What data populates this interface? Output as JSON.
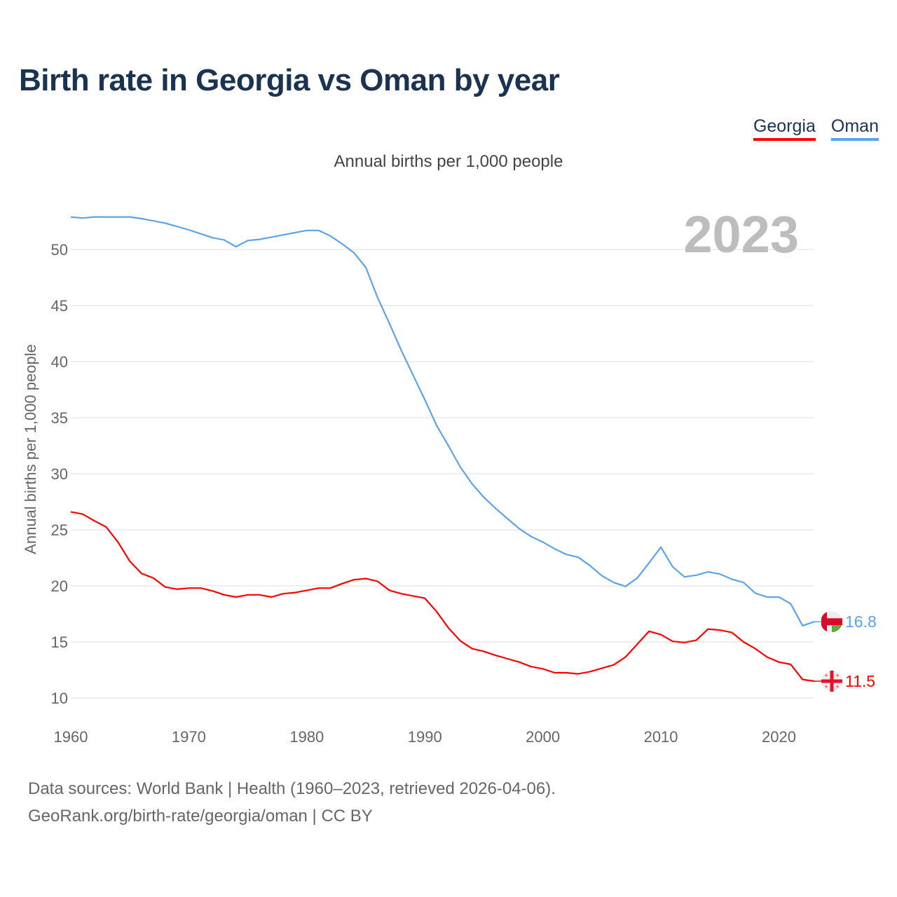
{
  "title": "Birth rate in Georgia vs Oman by year",
  "legend": {
    "georgia": "Georgia",
    "oman": "Oman"
  },
  "footer": {
    "line1": "Data sources: World Bank | Health (1960–2023, retrieved 2026-04-06).",
    "line2": "GeoRank.org/birth-rate/georgia/oman | CC BY"
  },
  "chart_data": {
    "type": "line",
    "title": "Birth rate in Georgia vs Oman by year",
    "subtitle": "Annual births per 1,000 people",
    "ylabel": "Annual births per 1,000 people",
    "xlabel": "",
    "year_label": "2023",
    "xlim": [
      1960,
      2023
    ],
    "ylim": [
      10,
      53
    ],
    "xticks": [
      1960,
      1970,
      1980,
      1990,
      2000,
      2010,
      2020
    ],
    "yticks": [
      10,
      15,
      20,
      25,
      30,
      35,
      40,
      45,
      50
    ],
    "grid": true,
    "legend_position": "top-right",
    "x": [
      1960,
      1961,
      1962,
      1963,
      1964,
      1965,
      1966,
      1967,
      1968,
      1969,
      1970,
      1971,
      1972,
      1973,
      1974,
      1975,
      1976,
      1977,
      1978,
      1979,
      1980,
      1981,
      1982,
      1983,
      1984,
      1985,
      1986,
      1987,
      1988,
      1989,
      1990,
      1991,
      1992,
      1993,
      1994,
      1995,
      1996,
      1997,
      1998,
      1999,
      2000,
      2001,
      2002,
      2003,
      2004,
      2005,
      2006,
      2007,
      2008,
      2009,
      2010,
      2011,
      2012,
      2013,
      2014,
      2015,
      2016,
      2017,
      2018,
      2019,
      2020,
      2021,
      2022,
      2023
    ],
    "series": [
      {
        "name": "Georgia",
        "color": "#ff0000",
        "end_label": "11.5",
        "flag": "georgia-flag",
        "values": [
          26.6,
          26.4,
          25.8,
          25.25,
          23.9,
          22.2,
          21.1,
          20.7,
          19.9,
          19.7,
          19.8,
          19.8,
          19.55,
          19.2,
          19.0,
          19.2,
          19.2,
          19.0,
          19.3,
          19.4,
          19.6,
          19.8,
          19.8,
          20.2,
          20.55,
          20.65,
          20.4,
          19.6,
          19.3,
          19.1,
          18.9,
          17.7,
          16.25,
          15.1,
          14.4,
          14.15,
          13.8,
          13.5,
          13.2,
          12.8,
          12.6,
          12.25,
          12.25,
          12.15,
          12.35,
          12.65,
          12.95,
          13.65,
          14.8,
          15.95,
          15.65,
          15.05,
          14.95,
          15.15,
          16.15,
          16.05,
          15.85,
          15.0,
          14.4,
          13.65,
          13.2,
          13.0,
          11.65,
          11.5
        ]
      },
      {
        "name": "Oman",
        "color": "#5ba4ea",
        "end_label": "16.8",
        "flag": "oman-flag",
        "values": [
          52.9,
          52.8,
          52.9,
          52.9,
          52.9,
          52.9,
          52.75,
          52.55,
          52.35,
          52.05,
          51.75,
          51.4,
          51.05,
          50.85,
          50.25,
          50.8,
          50.9,
          51.1,
          51.3,
          51.5,
          51.7,
          51.7,
          51.2,
          50.5,
          49.7,
          48.4,
          45.7,
          43.4,
          41.0,
          38.8,
          36.6,
          34.3,
          32.5,
          30.6,
          29.1,
          27.9,
          26.9,
          26.0,
          25.1,
          24.4,
          23.9,
          23.3,
          22.8,
          22.55,
          21.8,
          20.9,
          20.3,
          19.95,
          20.7,
          22.05,
          23.45,
          21.7,
          20.8,
          20.95,
          21.25,
          21.05,
          20.6,
          20.3,
          19.35,
          19.0,
          19.0,
          18.4,
          16.45,
          16.8
        ]
      }
    ]
  }
}
